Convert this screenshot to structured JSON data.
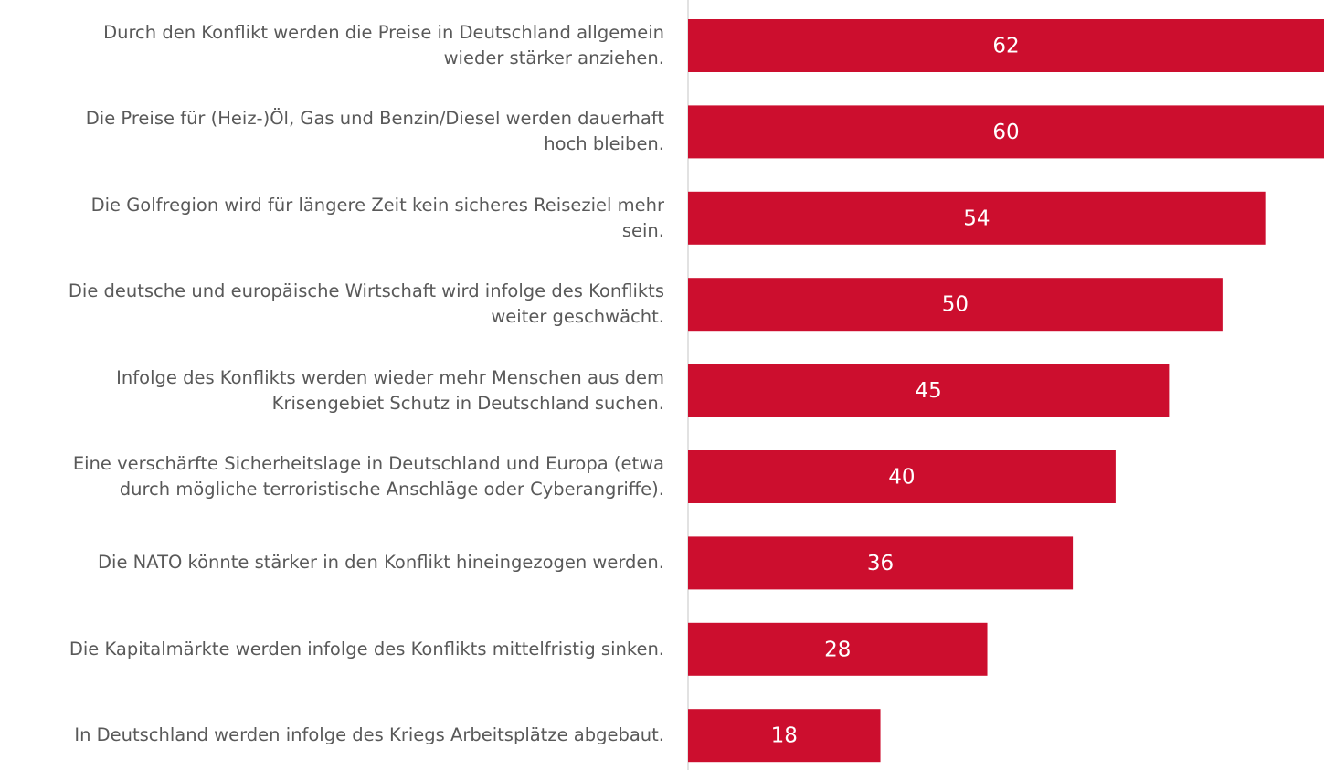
{
  "chart_data": {
    "type": "barh",
    "categories": [
      "Durch den Konflikt werden die Preise in Deutschland allgemein\nwieder stärker anziehen.",
      "Die Preise für (Heiz-)Öl, Gas und Benzin/Diesel werden dauerhaft\nhoch bleiben.",
      "Die Golfregion wird für längere Zeit kein sicheres Reiseziel mehr\nsein.",
      "Die deutsche und europäische Wirtschaft wird infolge des Konflikts\nweiter geschwächt.",
      "Infolge des Konflikts werden wieder mehr Menschen aus dem\nKrisengebiet Schutz in Deutschland suchen.",
      "Eine verschärfte Sicherheitslage in Deutschland und Europa (etwa\ndurch mögliche terroristische Anschläge oder Cyberangriffe).",
      "Die NATO könnte stärker in den Konflikt hineingezogen werden.",
      "Die Kapitalmärkte werden infolge des Konflikts mittelfristig sinken.",
      "In Deutschland werden infolge des Kriegs Arbeitsplätze abgebaut."
    ],
    "values": [
      62,
      60,
      54,
      50,
      45,
      40,
      36,
      28,
      18
    ],
    "color": "#cc0e2e",
    "xlim": [
      0,
      59.5
    ]
  }
}
